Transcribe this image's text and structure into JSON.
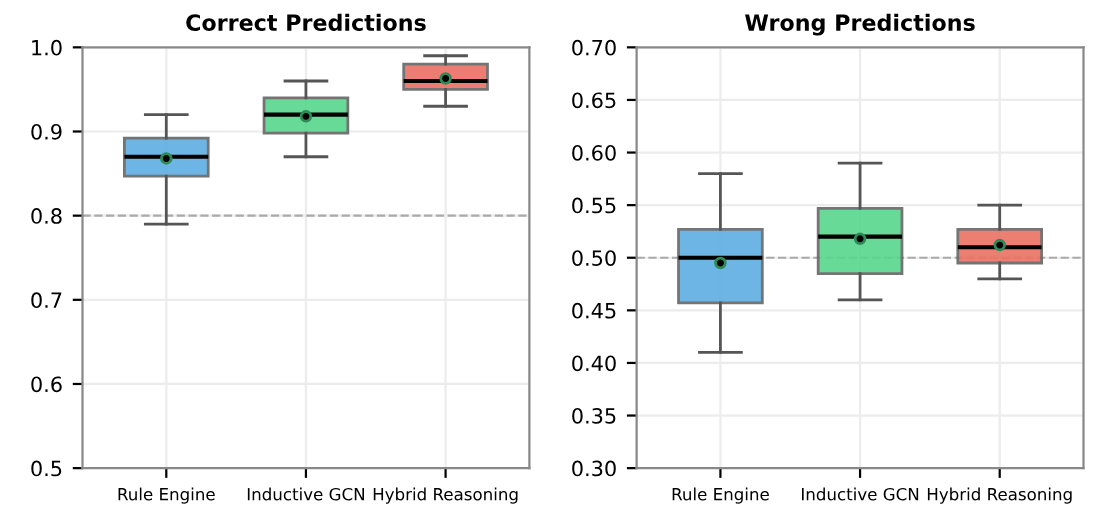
{
  "chart_data": [
    {
      "type": "box",
      "title": "Correct Predictions",
      "categories": [
        "Rule Engine",
        "Inductive GCN",
        "Hybrid Reasoning"
      ],
      "colors": [
        "#5dade2",
        "#58d68d",
        "#ec7063"
      ],
      "boxes": [
        {
          "low": 0.79,
          "q1": 0.847,
          "median": 0.87,
          "q3": 0.892,
          "high": 0.92,
          "mean": 0.868
        },
        {
          "low": 0.87,
          "q1": 0.898,
          "median": 0.92,
          "q3": 0.94,
          "high": 0.96,
          "mean": 0.918
        },
        {
          "low": 0.93,
          "q1": 0.95,
          "median": 0.96,
          "q3": 0.98,
          "high": 0.99,
          "mean": 0.963
        }
      ],
      "ylim": [
        0.5,
        1.0
      ],
      "yticks": [
        {
          "value": 0.5,
          "label": "0.5"
        },
        {
          "value": 0.6,
          "label": "0.6"
        },
        {
          "value": 0.7,
          "label": "0.7"
        },
        {
          "value": 0.8,
          "label": "0.8"
        },
        {
          "value": 0.9,
          "label": "0.9"
        },
        {
          "value": 1.0,
          "label": "1.0"
        }
      ],
      "ref_lines": [
        {
          "axis": "y",
          "value": 0.8,
          "label": null,
          "color": "#aaaaaa",
          "line_style": "dashed"
        }
      ],
      "grid": true
    },
    {
      "type": "box",
      "title": "Wrong Predictions",
      "categories": [
        "Rule Engine",
        "Inductive GCN",
        "Hybrid Reasoning"
      ],
      "colors": [
        "#5dade2",
        "#58d68d",
        "#ec7063"
      ],
      "boxes": [
        {
          "low": 0.41,
          "q1": 0.457,
          "median": 0.5,
          "q3": 0.527,
          "high": 0.58,
          "mean": 0.495
        },
        {
          "low": 0.46,
          "q1": 0.485,
          "median": 0.52,
          "q3": 0.547,
          "high": 0.59,
          "mean": 0.518
        },
        {
          "low": 0.48,
          "q1": 0.495,
          "median": 0.51,
          "q3": 0.527,
          "high": 0.55,
          "mean": 0.512
        }
      ],
      "ylim": [
        0.3,
        0.7
      ],
      "yticks": [
        {
          "value": 0.3,
          "label": "0.30"
        },
        {
          "value": 0.35,
          "label": "0.35"
        },
        {
          "value": 0.4,
          "label": "0.40"
        },
        {
          "value": 0.45,
          "label": "0.45"
        },
        {
          "value": 0.5,
          "label": "0.50"
        },
        {
          "value": 0.55,
          "label": "0.55"
        },
        {
          "value": 0.6,
          "label": "0.60"
        },
        {
          "value": 0.65,
          "label": "0.65"
        },
        {
          "value": 0.7,
          "label": "0.70"
        }
      ],
      "ref_lines": [
        {
          "axis": "y",
          "value": 0.5,
          "label": null,
          "color": "#aaaaaa",
          "line_style": "dashed"
        }
      ],
      "grid": true
    }
  ]
}
